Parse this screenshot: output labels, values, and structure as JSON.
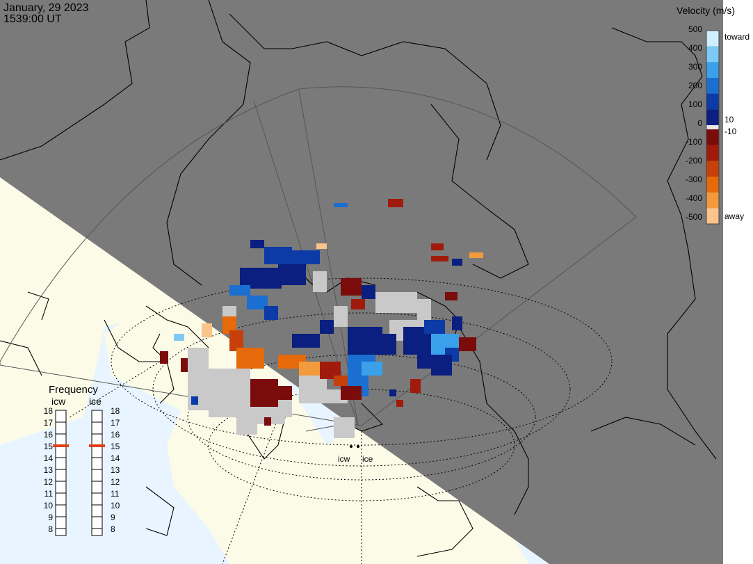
{
  "header": {
    "date": "January, 29 2023",
    "time": "1539:00 UT"
  },
  "legend": {
    "title": "Velocity (m/s)",
    "ticks": [
      "500",
      "400",
      "300",
      "200",
      "100",
      "0",
      "-100",
      "-200",
      "-300",
      "-400",
      "-500"
    ],
    "mid_labels": [
      "10",
      "-10"
    ],
    "toward_label": "toward",
    "away_label": "away",
    "colors": [
      "#cfeeff",
      "#7ccaf5",
      "#3aa0ea",
      "#1b6fd0",
      "#0c3aa6",
      "#0a1f80",
      "#7a0c0c",
      "#a01b0b",
      "#c7400a",
      "#e66a0a",
      "#f39b3c",
      "#fbc48a"
    ]
  },
  "frequency": {
    "title": "Frequency",
    "col1": "icw",
    "col2": "ice",
    "ticks": [
      "18",
      "17",
      "16",
      "15",
      "14",
      "13",
      "12",
      "11",
      "10",
      "9",
      "8"
    ],
    "icw_value": "15",
    "ice_value": "15",
    "marker_color": "#e0401a"
  },
  "radars": {
    "site1": "icw",
    "site2": "ice"
  },
  "colors": {
    "night": "#7a7a7a",
    "land": "#fbfbe8",
    "ocean": "#e8f4ff",
    "grey_scatter": "#c9c9c9"
  }
}
